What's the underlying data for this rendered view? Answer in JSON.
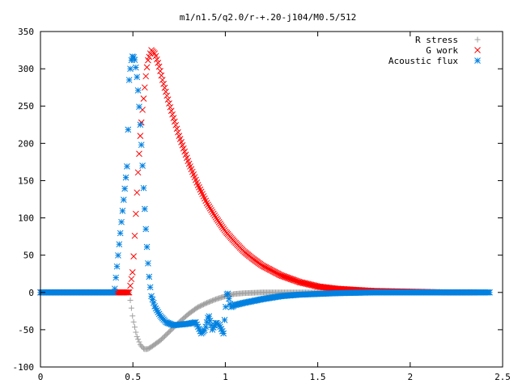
{
  "chart_data": {
    "type": "scatter",
    "title": "m1/n1.5/q2.0/r-+.20-j104/M0.5/512",
    "xlabel": "",
    "ylabel": "",
    "xlim": [
      0,
      2.5
    ],
    "ylim": [
      -100,
      350
    ],
    "x_ticks": [
      0,
      0.5,
      1,
      1.5,
      2,
      2.5
    ],
    "x_tick_labels": [
      "0",
      "0.5",
      "1",
      "1.5",
      "2",
      "2.5"
    ],
    "y_ticks": [
      -100,
      -50,
      0,
      50,
      100,
      150,
      200,
      250,
      300,
      350
    ],
    "y_tick_labels": [
      "-100",
      "-50",
      "0",
      "50",
      "100",
      "150",
      "200",
      "250",
      "300",
      "350"
    ],
    "grid": false,
    "legend_position": "top-right",
    "series": [
      {
        "name": "R stress",
        "marker": "plus",
        "color": "#a0a0a0",
        "x": [
          0.0,
          0.2,
          0.4,
          0.48,
          0.5,
          0.52,
          0.54,
          0.56,
          0.58,
          0.6,
          0.65,
          0.7,
          0.75,
          0.8,
          0.85,
          0.9,
          0.95,
          1.0,
          1.05,
          1.1,
          1.2,
          1.3,
          1.5,
          1.8,
          2.1,
          2.35
        ],
        "y": [
          0,
          0,
          0,
          0,
          -35,
          -58,
          -70,
          -76,
          -76,
          -73,
          -64,
          -52,
          -40,
          -29,
          -20,
          -14,
          -9,
          -5,
          -2,
          -1,
          0,
          0,
          0,
          0,
          0,
          0
        ]
      },
      {
        "name": "G work",
        "marker": "cross",
        "color": "#ff0000",
        "x": [
          0.0,
          0.2,
          0.4,
          0.48,
          0.5,
          0.51,
          0.52,
          0.53,
          0.54,
          0.55,
          0.56,
          0.57,
          0.58,
          0.6,
          0.62,
          0.64,
          0.66,
          0.7,
          0.75,
          0.8,
          0.85,
          0.9,
          0.95,
          1.0,
          1.05,
          1.1,
          1.15,
          1.2,
          1.3,
          1.4,
          1.5,
          1.6,
          1.8,
          2.0,
          2.2,
          2.35
        ],
        "y": [
          0,
          0,
          0,
          0,
          30,
          76,
          125,
          170,
          210,
          240,
          265,
          290,
          310,
          325,
          320,
          305,
          285,
          250,
          210,
          175,
          145,
          120,
          100,
          82,
          68,
          55,
          45,
          36,
          23,
          14,
          8,
          5,
          2,
          1,
          0,
          0
        ]
      },
      {
        "name": "Acoustic flux",
        "marker": "star",
        "color": "#0080e0",
        "x": [
          0.0,
          0.2,
          0.4,
          0.47,
          0.48,
          0.49,
          0.5,
          0.51,
          0.52,
          0.53,
          0.54,
          0.55,
          0.56,
          0.57,
          0.58,
          0.59,
          0.6,
          0.62,
          0.65,
          0.68,
          0.72,
          0.76,
          0.8,
          0.84,
          0.87,
          0.89,
          0.91,
          0.93,
          0.95,
          0.97,
          0.99,
          1.0,
          1.01,
          1.03,
          1.05,
          1.1,
          1.2,
          1.3,
          1.4,
          1.5,
          1.6,
          1.8,
          2.0,
          2.2,
          2.43
        ],
        "y": [
          0,
          0,
          0,
          174,
          285,
          310,
          318,
          312,
          295,
          265,
          225,
          180,
          130,
          85,
          45,
          15,
          -5,
          -20,
          -32,
          -40,
          -44,
          -43,
          -42,
          -40,
          -55,
          -50,
          -30,
          -50,
          -40,
          -45,
          -55,
          -25,
          3,
          -20,
          -17,
          -14,
          -9,
          -5,
          -3,
          -2,
          -1,
          0,
          0,
          0,
          0
        ]
      }
    ]
  }
}
